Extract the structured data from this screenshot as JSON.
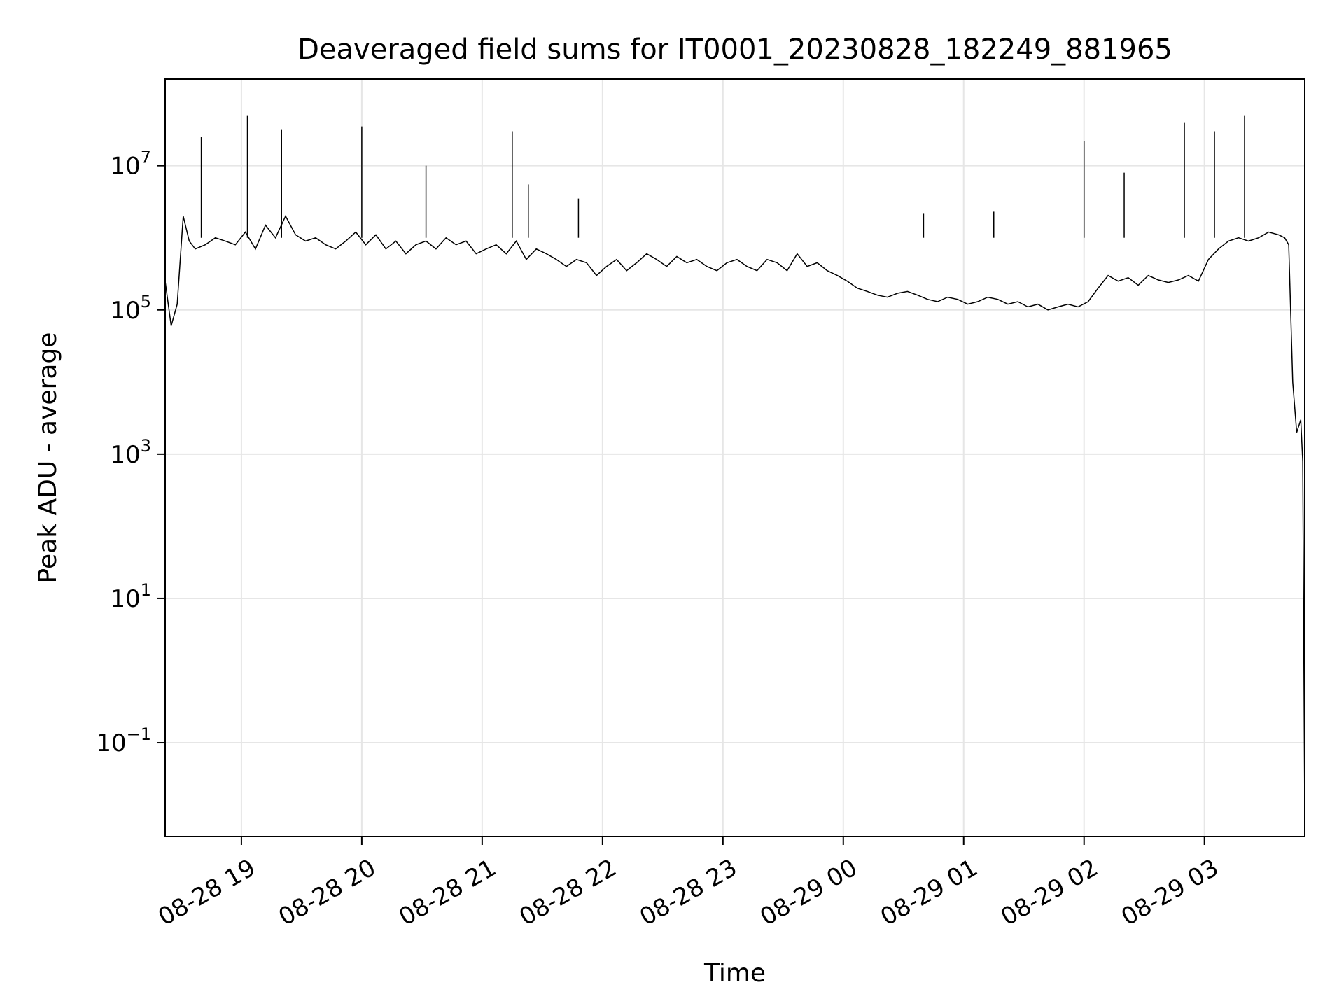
{
  "chart_data": {
    "type": "line",
    "title": "Deaveraged field sums for IT0001_20230828_182249_881965",
    "xlabel": "Time",
    "ylabel": "Peak ADU - average",
    "yscale": "log",
    "grid": true,
    "line_color": "#000000",
    "grid_color": "#e6e6e6",
    "xlim": [
      "2023-08-28 18:22",
      "2023-08-29 03:50"
    ],
    "ylim_log10": [
      -2.3,
      8.2
    ],
    "x_ticks": [
      {
        "time": "2023-08-28 19:00",
        "label": "08-28 19"
      },
      {
        "time": "2023-08-28 20:00",
        "label": "08-28 20"
      },
      {
        "time": "2023-08-28 21:00",
        "label": "08-28 21"
      },
      {
        "time": "2023-08-28 22:00",
        "label": "08-28 22"
      },
      {
        "time": "2023-08-28 23:00",
        "label": "08-28 23"
      },
      {
        "time": "2023-08-29 00:00",
        "label": "08-29 00"
      },
      {
        "time": "2023-08-29 01:00",
        "label": "08-29 01"
      },
      {
        "time": "2023-08-29 02:00",
        "label": "08-29 02"
      },
      {
        "time": "2023-08-29 03:00",
        "label": "08-29 03"
      }
    ],
    "y_ticks": [
      {
        "exp": 7,
        "label": "10",
        "sup": "7"
      },
      {
        "exp": 5,
        "label": "10",
        "sup": "5"
      },
      {
        "exp": 3,
        "label": "10",
        "sup": "3"
      },
      {
        "exp": 1,
        "label": "10",
        "sup": "1"
      },
      {
        "exp": -1,
        "label": "10",
        "sup": "−1"
      }
    ],
    "series": [
      {
        "x": [
          "2023-08-28 18:22",
          "2023-08-28 18:25",
          "2023-08-28 18:28",
          "2023-08-28 18:31",
          "2023-08-28 18:34",
          "2023-08-28 18:37",
          "2023-08-28 18:42",
          "2023-08-28 18:47",
          "2023-08-28 18:52",
          "2023-08-28 18:57",
          "2023-08-28 19:02",
          "2023-08-28 19:07",
          "2023-08-28 19:12",
          "2023-08-28 19:17",
          "2023-08-28 19:22",
          "2023-08-28 19:27",
          "2023-08-28 19:32",
          "2023-08-28 19:37",
          "2023-08-28 19:42",
          "2023-08-28 19:47",
          "2023-08-28 19:52",
          "2023-08-28 19:57",
          "2023-08-28 20:02",
          "2023-08-28 20:07",
          "2023-08-28 20:12",
          "2023-08-28 20:17",
          "2023-08-28 20:22",
          "2023-08-28 20:27",
          "2023-08-28 20:32",
          "2023-08-28 20:37",
          "2023-08-28 20:42",
          "2023-08-28 20:47",
          "2023-08-28 20:52",
          "2023-08-28 20:57",
          "2023-08-28 21:02",
          "2023-08-28 21:07",
          "2023-08-28 21:12",
          "2023-08-28 21:17",
          "2023-08-28 21:22",
          "2023-08-28 21:27",
          "2023-08-28 21:32",
          "2023-08-28 21:37",
          "2023-08-28 21:42",
          "2023-08-28 21:47",
          "2023-08-28 21:52",
          "2023-08-28 21:57",
          "2023-08-28 22:02",
          "2023-08-28 22:07",
          "2023-08-28 22:12",
          "2023-08-28 22:17",
          "2023-08-28 22:22",
          "2023-08-28 22:27",
          "2023-08-28 22:32",
          "2023-08-28 22:37",
          "2023-08-28 22:42",
          "2023-08-28 22:47",
          "2023-08-28 22:52",
          "2023-08-28 22:57",
          "2023-08-28 23:02",
          "2023-08-28 23:07",
          "2023-08-28 23:12",
          "2023-08-28 23:17",
          "2023-08-28 23:22",
          "2023-08-28 23:27",
          "2023-08-28 23:32",
          "2023-08-28 23:37",
          "2023-08-28 23:42",
          "2023-08-28 23:47",
          "2023-08-28 23:52",
          "2023-08-28 23:57",
          "2023-08-29 00:02",
          "2023-08-29 00:07",
          "2023-08-29 00:12",
          "2023-08-29 00:17",
          "2023-08-29 00:22",
          "2023-08-29 00:27",
          "2023-08-29 00:32",
          "2023-08-29 00:37",
          "2023-08-29 00:42",
          "2023-08-29 00:47",
          "2023-08-29 00:52",
          "2023-08-29 00:57",
          "2023-08-29 01:02",
          "2023-08-29 01:07",
          "2023-08-29 01:12",
          "2023-08-29 01:17",
          "2023-08-29 01:22",
          "2023-08-29 01:27",
          "2023-08-29 01:32",
          "2023-08-29 01:37",
          "2023-08-29 01:42",
          "2023-08-29 01:47",
          "2023-08-29 01:52",
          "2023-08-29 01:57",
          "2023-08-29 02:02",
          "2023-08-29 02:07",
          "2023-08-29 02:12",
          "2023-08-29 02:17",
          "2023-08-29 02:22",
          "2023-08-29 02:27",
          "2023-08-29 02:32",
          "2023-08-29 02:37",
          "2023-08-29 02:42",
          "2023-08-29 02:47",
          "2023-08-29 02:52",
          "2023-08-29 02:57",
          "2023-08-29 03:02",
          "2023-08-29 03:07",
          "2023-08-29 03:12",
          "2023-08-29 03:17",
          "2023-08-29 03:22",
          "2023-08-29 03:27",
          "2023-08-29 03:32",
          "2023-08-29 03:37",
          "2023-08-29 03:40",
          "2023-08-29 03:42",
          "2023-08-29 03:44",
          "2023-08-29 03:46",
          "2023-08-29 03:48",
          "2023-08-29 03:49",
          "2023-08-29 03:50"
        ],
        "y": [
          250000,
          60000,
          120000,
          2000000,
          900000,
          700000,
          800000,
          1000000,
          900000,
          800000,
          1200000,
          700000,
          1500000,
          1000000,
          2000000,
          1100000,
          900000,
          1000000,
          800000,
          700000,
          900000,
          1200000,
          800000,
          1100000,
          700000,
          900000,
          600000,
          800000,
          900000,
          700000,
          1000000,
          800000,
          900000,
          600000,
          700000,
          800000,
          600000,
          900000,
          500000,
          700000,
          600000,
          500000,
          400000,
          500000,
          450000,
          300000,
          400000,
          500000,
          350000,
          450000,
          600000,
          500000,
          400000,
          550000,
          450000,
          500000,
          400000,
          350000,
          450000,
          500000,
          400000,
          350000,
          500000,
          450000,
          350000,
          600000,
          400000,
          450000,
          350000,
          300000,
          250000,
          200000,
          180000,
          160000,
          150000,
          170000,
          180000,
          160000,
          140000,
          130000,
          150000,
          140000,
          120000,
          130000,
          150000,
          140000,
          120000,
          130000,
          110000,
          120000,
          100000,
          110000,
          120000,
          110000,
          130000,
          200000,
          300000,
          250000,
          280000,
          220000,
          300000,
          260000,
          240000,
          260000,
          300000,
          250000,
          500000,
          700000,
          900000,
          1000000,
          900000,
          1000000,
          1200000,
          1100000,
          1000000,
          800000,
          10000,
          2000,
          3000,
          800,
          0.01
        ],
        "spikes": [
          {
            "time": "2023-08-28 18:40",
            "y": 25000000
          },
          {
            "time": "2023-08-28 19:03",
            "y": 50000000
          },
          {
            "time": "2023-08-28 19:20",
            "y": 32000000
          },
          {
            "time": "2023-08-28 20:00",
            "y": 35000000
          },
          {
            "time": "2023-08-28 20:32",
            "y": 10000000
          },
          {
            "time": "2023-08-28 21:15",
            "y": 30000000
          },
          {
            "time": "2023-08-28 21:23",
            "y": 5500000
          },
          {
            "time": "2023-08-28 21:48",
            "y": 3500000
          },
          {
            "time": "2023-08-29 00:40",
            "y": 2200000
          },
          {
            "time": "2023-08-29 01:15",
            "y": 2300000
          },
          {
            "time": "2023-08-29 02:00",
            "y": 22000000
          },
          {
            "time": "2023-08-29 02:20",
            "y": 8000000
          },
          {
            "time": "2023-08-29 02:50",
            "y": 40000000
          },
          {
            "time": "2023-08-29 03:05",
            "y": 30000000
          },
          {
            "time": "2023-08-29 03:20",
            "y": 50000000
          }
        ]
      }
    ]
  }
}
